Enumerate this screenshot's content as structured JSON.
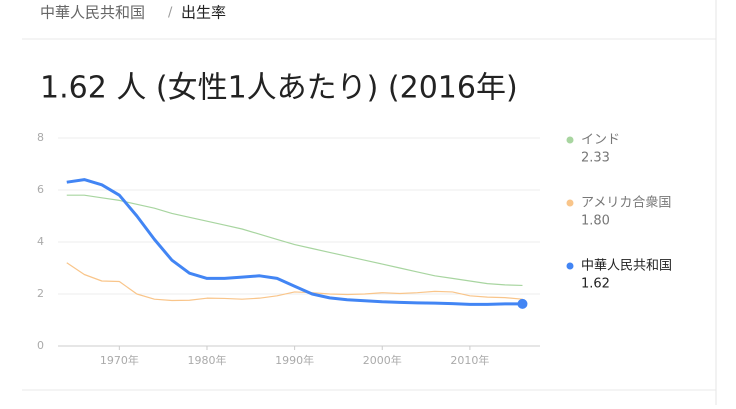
{
  "breadcrumb": {
    "country": "中華人民共和国",
    "separator": "/",
    "topic": "出生率"
  },
  "headline": "1.62 人 (女性1人あたり) (2016年)",
  "chart_data": {
    "type": "line",
    "x": [
      1964,
      1966,
      1968,
      1970,
      1972,
      1974,
      1976,
      1978,
      1980,
      1982,
      1984,
      1986,
      1988,
      1990,
      1992,
      1994,
      1996,
      1998,
      2000,
      2002,
      2004,
      2006,
      2008,
      2010,
      2012,
      2014,
      2016
    ],
    "series": [
      {
        "name": "インド",
        "latest": "2.33",
        "color": "#a8d5a0",
        "values": [
          5.8,
          5.8,
          5.7,
          5.6,
          5.45,
          5.3,
          5.1,
          4.95,
          4.8,
          4.65,
          4.5,
          4.3,
          4.1,
          3.9,
          3.75,
          3.6,
          3.45,
          3.3,
          3.15,
          3.0,
          2.85,
          2.7,
          2.6,
          2.5,
          2.4,
          2.35,
          2.33
        ]
      },
      {
        "name": "アメリカ合衆国",
        "latest": "1.80",
        "color": "#f9c58a",
        "values": [
          3.2,
          2.75,
          2.5,
          2.48,
          2.0,
          1.8,
          1.75,
          1.76,
          1.84,
          1.83,
          1.8,
          1.84,
          1.93,
          2.08,
          2.05,
          2.0,
          1.98,
          2.0,
          2.05,
          2.02,
          2.05,
          2.1,
          2.08,
          1.93,
          1.88,
          1.86,
          1.8
        ]
      },
      {
        "name": "中華人民共和国",
        "latest": "1.62",
        "color": "#4285f4",
        "values": [
          6.3,
          6.4,
          6.2,
          5.8,
          5.0,
          4.1,
          3.3,
          2.8,
          2.6,
          2.6,
          2.65,
          2.7,
          2.6,
          2.3,
          2.0,
          1.85,
          1.78,
          1.74,
          1.7,
          1.68,
          1.66,
          1.65,
          1.63,
          1.6,
          1.6,
          1.62,
          1.62
        ]
      }
    ],
    "xlim": [
      1963,
      2018
    ],
    "xticks": [
      {
        "value": 1970,
        "label": "1970年"
      },
      {
        "value": 1980,
        "label": "1980年"
      },
      {
        "value": 1990,
        "label": "1990年"
      },
      {
        "value": 2000,
        "label": "2000年"
      },
      {
        "value": 2010,
        "label": "2010年"
      }
    ],
    "ylim": [
      0,
      8
    ],
    "yticks": [
      0,
      2,
      4,
      6,
      8
    ],
    "grid": true
  }
}
